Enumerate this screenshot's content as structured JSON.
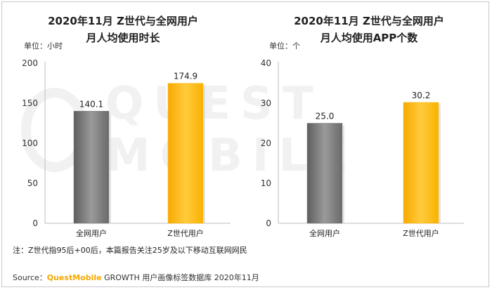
{
  "note": "注：Z世代指95后+00后，本篇报告关注25岁及以下移动互联网网民",
  "source": {
    "prefix": "Source：",
    "brand": "QuestMobile",
    "suffix": " GROWTH 用户画像标签数据库 2020年11月"
  },
  "watermark": "QUEST MOBILE",
  "colors": {
    "gray": "#7b7b7b",
    "gold": "#fbb813"
  },
  "chart_data": [
    {
      "type": "bar",
      "title_line1": "2020年11月 Z世代与全网用户",
      "title_line2": "月人均使用时长",
      "unit_label": "单位：小时",
      "categories": [
        "全网用户",
        "Z世代用户"
      ],
      "values": [
        140.1,
        174.9
      ],
      "value_labels": [
        "140.1",
        "174.9"
      ],
      "ylim": [
        0,
        200
      ],
      "yticks": [
        0,
        50,
        100,
        150,
        200
      ]
    },
    {
      "type": "bar",
      "title_line1": "2020年11月 Z世代与全网用户",
      "title_line2": "月人均使用APP个数",
      "unit_label": "单位：个",
      "categories": [
        "全网用户",
        "Z世代用户"
      ],
      "values": [
        25.0,
        30.2
      ],
      "value_labels": [
        "25.0",
        "30.2"
      ],
      "ylim": [
        0,
        40
      ],
      "yticks": [
        0,
        10,
        20,
        30,
        40
      ]
    }
  ]
}
